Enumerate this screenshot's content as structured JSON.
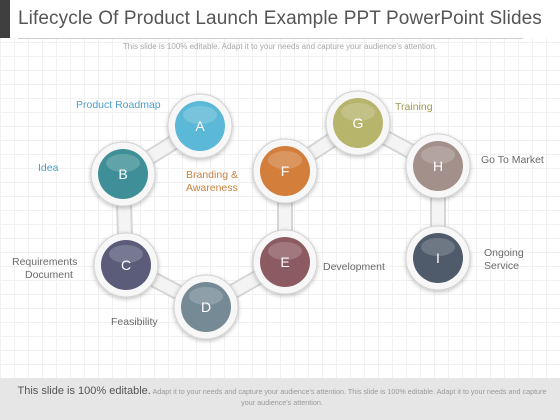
{
  "header": {
    "title": "Lifecycle Of Product Launch Example PPT PowerPoint Slides",
    "subtitle": "This slide is 100% editable. Adapt it to your needs and capture your audience's attention."
  },
  "nodes": [
    {
      "letter": "A",
      "color": "#5bb8d6"
    },
    {
      "letter": "B",
      "color": "#3e8f97"
    },
    {
      "letter": "C",
      "color": "#5a5c7a"
    },
    {
      "letter": "D",
      "color": "#768a96"
    },
    {
      "letter": "E",
      "color": "#8c5b62"
    },
    {
      "letter": "F",
      "color": "#d47e3c"
    },
    {
      "letter": "G",
      "color": "#b7b46c"
    },
    {
      "letter": "H",
      "color": "#a3908a"
    },
    {
      "letter": "I",
      "color": "#4f5b6b"
    }
  ],
  "labels": {
    "product_roadmap": "Product Roadmap",
    "idea": "Idea",
    "requirements_1": "Requirements",
    "requirements_2": "Document",
    "feasibility": "Feasibility",
    "branding_1": "Branding &",
    "branding_2": "Awareness",
    "development": "Development",
    "training": "Training",
    "go_to_market": "Go To Market",
    "ongoing_1": "Ongoing",
    "ongoing_2": "Service"
  },
  "colors": {
    "blue_label": "#4fa0c8",
    "orange_label": "#c8823e",
    "olive_label": "#a39a4d",
    "gray_label": "#6a6a6a"
  },
  "footer": {
    "lead": "This slide is 100% editable.",
    "rest": "Adapt it to your needs and capture your audience's attention. This slide is 100% editable. Adapt it to your needs and capture your audience's attention."
  }
}
